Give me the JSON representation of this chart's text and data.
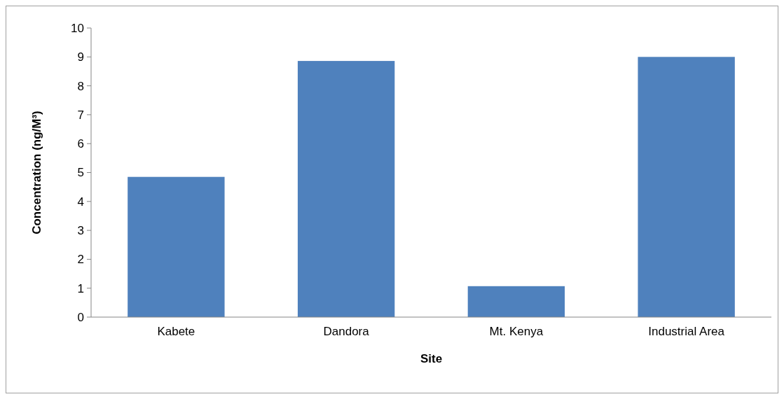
{
  "chart_data": {
    "type": "bar",
    "xlabel": "Site",
    "ylabel": "Concentration (ng/M³)",
    "categories": [
      "Kabete",
      "Dandora",
      "Mt. Kenya",
      "Industrial Area"
    ],
    "values": [
      4.85,
      8.86,
      1.07,
      9.0
    ],
    "color": "#4f81bd",
    "ylim": [
      0,
      10
    ],
    "yticks": [
      0,
      1,
      2,
      3,
      4,
      5,
      6,
      7,
      8,
      9,
      10
    ]
  }
}
